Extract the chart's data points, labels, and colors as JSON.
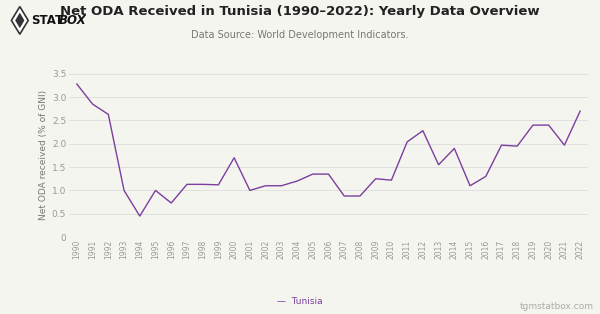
{
  "title": "Net ODA Received in Tunisia (1990–2022): Yearly Data Overview",
  "subtitle": "Data Source: World Development Indicators.",
  "ylabel": "Net ODA received (% of GNI)",
  "line_color": "#7B3F9E",
  "background_color": "#f5f5f0",
  "footer_left": "—  Tunisia",
  "footer_right": "tgmstatbox.com",
  "years": [
    1990,
    1991,
    1992,
    1993,
    1994,
    1995,
    1996,
    1997,
    1998,
    1999,
    2000,
    2001,
    2002,
    2003,
    2004,
    2005,
    2006,
    2007,
    2008,
    2009,
    2010,
    2011,
    2012,
    2013,
    2014,
    2015,
    2016,
    2017,
    2018,
    2019,
    2020,
    2021,
    2022
  ],
  "values": [
    3.28,
    2.85,
    2.63,
    1.0,
    0.45,
    1.0,
    0.73,
    1.13,
    1.13,
    1.12,
    1.7,
    1.0,
    1.1,
    1.1,
    1.2,
    1.35,
    1.35,
    0.88,
    0.88,
    1.25,
    1.22,
    2.04,
    2.28,
    1.55,
    1.9,
    1.1,
    1.3,
    1.97,
    1.95,
    2.4,
    2.4,
    1.97,
    2.7
  ],
  "ylim": [
    0,
    3.5
  ],
  "yticks": [
    0,
    0.5,
    1.0,
    1.5,
    2.0,
    2.5,
    3.0,
    3.5
  ],
  "grid_color": "#dddddd",
  "title_color": "#222222",
  "subtitle_color": "#777777",
  "tick_color": "#999999",
  "ylabel_color": "#777777",
  "footer_color": "#aaaaaa"
}
